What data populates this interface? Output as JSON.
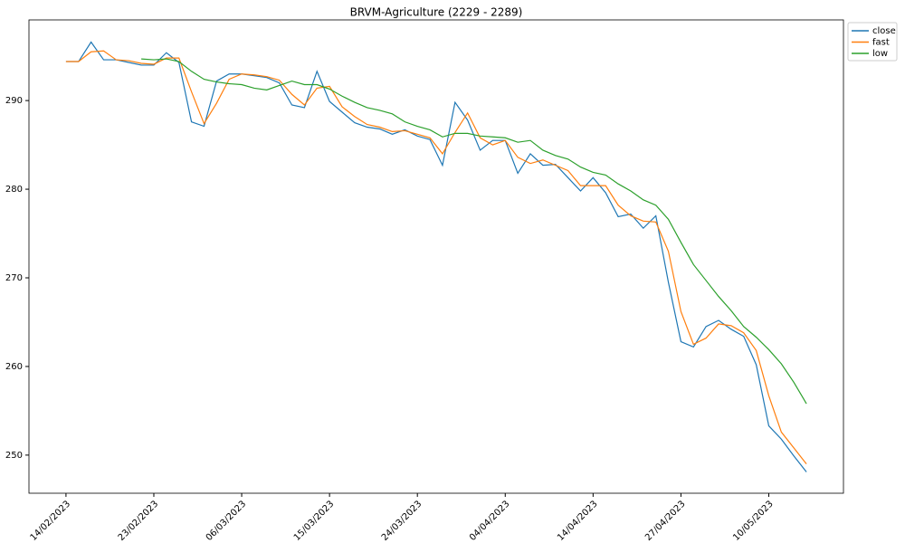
{
  "chart_data": {
    "type": "line",
    "title": "BRVM-Agriculture (2229 - 2289)",
    "categories": [
      "14/02/2023",
      null,
      null,
      null,
      null,
      null,
      null,
      "23/02/2023",
      null,
      null,
      null,
      null,
      null,
      null,
      "06/03/2023",
      null,
      null,
      null,
      null,
      null,
      null,
      "15/03/2023",
      null,
      null,
      null,
      null,
      null,
      null,
      "24/03/2023",
      null,
      null,
      null,
      null,
      null,
      null,
      "04/04/2023",
      null,
      null,
      null,
      null,
      null,
      null,
      "14/04/2023",
      null,
      null,
      null,
      null,
      null,
      null,
      "27/04/2023",
      null,
      null,
      null,
      null,
      null,
      null,
      "10/05/2023",
      null,
      null,
      null
    ],
    "series": [
      {
        "name": "close",
        "color": "#1f77b4",
        "values": [
          294.4,
          294.4,
          296.6,
          294.6,
          294.6,
          294.3,
          294.0,
          294.0,
          295.4,
          294.3,
          287.6,
          287.1,
          292.2,
          293.0,
          293.0,
          292.8,
          292.6,
          292.0,
          289.5,
          289.2,
          293.3,
          289.9,
          288.7,
          287.5,
          287.0,
          286.8,
          286.2,
          286.7,
          286.0,
          285.6,
          282.7,
          289.8,
          287.8,
          284.4,
          285.5,
          285.5,
          281.8,
          284.0,
          282.7,
          282.8,
          281.3,
          279.8,
          281.3,
          279.6,
          276.9,
          277.2,
          275.6,
          277.0,
          269.5,
          262.8,
          262.2,
          264.5,
          265.2,
          264.2,
          263.4,
          260.2,
          253.3,
          251.8,
          249.9,
          248.1
        ]
      },
      {
        "name": "fast",
        "color": "#ff7f0e",
        "values": [
          294.4,
          294.4,
          295.5,
          295.6,
          294.6,
          294.5,
          294.2,
          294.1,
          294.8,
          294.8,
          291.0,
          287.4,
          289.7,
          292.4,
          293.0,
          292.9,
          292.7,
          292.3,
          290.7,
          289.5,
          291.4,
          291.6,
          289.3,
          288.2,
          287.3,
          287.0,
          286.5,
          286.6,
          286.2,
          285.8,
          284.0,
          286.4,
          288.6,
          285.8,
          285.0,
          285.5,
          283.6,
          282.9,
          283.3,
          282.7,
          282.1,
          280.4,
          280.4,
          280.4,
          278.2,
          277.0,
          276.4,
          276.3,
          273.0,
          266.2,
          262.5,
          263.2,
          264.8,
          264.6,
          263.8,
          261.8,
          256.7,
          252.6,
          250.8,
          249.0
        ]
      },
      {
        "name": "low",
        "color": "#2ca02c",
        "values": [
          null,
          null,
          null,
          null,
          null,
          null,
          294.7,
          294.6,
          294.7,
          294.4,
          293.3,
          292.4,
          292.1,
          291.9,
          291.8,
          291.4,
          291.2,
          291.7,
          292.2,
          291.8,
          291.8,
          291.3,
          290.5,
          289.8,
          289.2,
          288.9,
          288.5,
          287.6,
          287.1,
          286.7,
          285.9,
          286.3,
          286.3,
          286.0,
          285.9,
          285.8,
          285.3,
          285.5,
          284.4,
          283.8,
          283.4,
          282.5,
          281.9,
          281.6,
          280.6,
          279.8,
          278.8,
          278.2,
          276.6,
          274.0,
          271.5,
          269.7,
          267.9,
          266.3,
          264.5,
          263.3,
          261.9,
          260.3,
          258.2,
          255.8
        ]
      }
    ],
    "ylim": [
      245.7,
      299.1
    ],
    "yticks": [
      250,
      260,
      270,
      280,
      290
    ],
    "legend": "upper right outside"
  }
}
